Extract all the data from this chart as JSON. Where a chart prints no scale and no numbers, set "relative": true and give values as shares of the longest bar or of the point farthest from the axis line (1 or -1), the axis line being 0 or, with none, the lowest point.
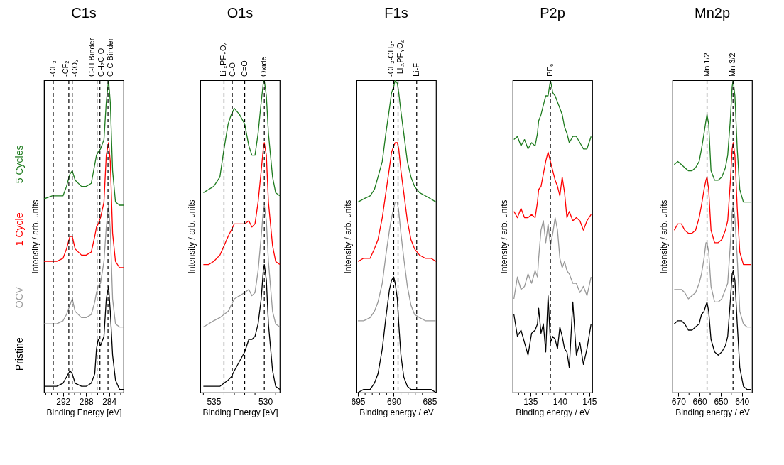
{
  "chart_data": [
    {
      "type": "line",
      "relative": true,
      "tick_labels": "x",
      "title": "C1s",
      "xlabel": "Binding Energy [eV]",
      "ylabel": "Intensity / arb. units",
      "xlim": [
        295.3,
        281.5
      ],
      "xticks": [
        {
          "value": 282,
          "label": null
        },
        {
          "value": 283,
          "label": null
        },
        284,
        {
          "value": 285,
          "label": null
        },
        {
          "value": 286,
          "label": null
        },
        {
          "value": 287,
          "label": null
        },
        288,
        {
          "value": 289,
          "label": null
        },
        {
          "value": 290,
          "label": null
        },
        {
          "value": 291,
          "label": null
        },
        292,
        {
          "value": 293,
          "label": null
        },
        {
          "value": 294,
          "label": null
        },
        {
          "value": 295,
          "label": null
        }
      ],
      "x": [
        295.3,
        293.9,
        293.1,
        292.0,
        291.4,
        290.8,
        290.4,
        289.9,
        288.8,
        288.0,
        287.1,
        286.5,
        286.2,
        285.9,
        285.5,
        284.9,
        284.5,
        284.1,
        283.8,
        283.4,
        282.9,
        282.2,
        281.5
      ],
      "series": [
        {
          "name": "Pristine",
          "color": "#000000",
          "values": [
            0.02,
            0.02,
            0.02,
            0.03,
            0.05,
            0.07,
            0.06,
            0.03,
            0.02,
            0.02,
            0.03,
            0.06,
            0.14,
            0.17,
            0.15,
            0.18,
            0.3,
            0.34,
            0.26,
            0.12,
            0.04,
            0.01,
            0.01
          ]
        },
        {
          "name": "OCV",
          "color": "#999999",
          "values": [
            0.22,
            0.22,
            0.22,
            0.23,
            0.25,
            0.28,
            0.3,
            0.26,
            0.24,
            0.24,
            0.25,
            0.29,
            0.32,
            0.34,
            0.35,
            0.42,
            0.53,
            0.6,
            0.52,
            0.3,
            0.22,
            0.21,
            0.21
          ]
        },
        {
          "name": "1 Cycle",
          "color": "#ff0000",
          "values": [
            0.42,
            0.42,
            0.42,
            0.43,
            0.46,
            0.5,
            0.5,
            0.46,
            0.44,
            0.44,
            0.45,
            0.5,
            0.53,
            0.54,
            0.56,
            0.61,
            0.76,
            0.8,
            0.74,
            0.51,
            0.42,
            0.4,
            0.4
          ]
        },
        {
          "name": "5 Cycles",
          "color": "#1e7b1e",
          "values": [
            0.62,
            0.63,
            0.63,
            0.63,
            0.66,
            0.7,
            0.71,
            0.68,
            0.66,
            0.66,
            0.67,
            0.73,
            0.76,
            0.77,
            0.78,
            0.81,
            0.93,
            1.0,
            0.93,
            0.71,
            0.61,
            0.6,
            0.6
          ]
        }
      ],
      "ref_lines": [
        {
          "axis": "x",
          "value": 293.7,
          "label": "-CF₃",
          "color": "#000000",
          "line_style": "dashed"
        },
        {
          "axis": "x",
          "value": 291.0,
          "label": "-CF₂",
          "color": "#000000",
          "line_style": "dashed"
        },
        {
          "axis": "x",
          "value": 290.4,
          "label": "-CO₃",
          "color": "#000000",
          "line_style": "dashed"
        },
        {
          "axis": "x",
          "value": 286.1,
          "label": "C-H Binder",
          "color": "#000000",
          "line_style": "dashed"
        },
        {
          "axis": "x",
          "value": 285.6,
          "label": "CH₂C-O",
          "color": "#000000",
          "line_style": "dashed"
        },
        {
          "axis": "x",
          "value": 284.2,
          "label": "C-C Binder",
          "color": "#000000",
          "line_style": "dashed"
        }
      ]
    },
    {
      "type": "line",
      "relative": true,
      "tick_labels": "x",
      "title": "O1s",
      "xlabel": "Binding Energy [eV]",
      "ylabel": "Intensity / arb. units",
      "xlim": [
        536.3,
        528.6
      ],
      "xticks": [
        {
          "value": 529,
          "label": null
        },
        530,
        {
          "value": 531,
          "label": null
        },
        {
          "value": 532,
          "label": null
        },
        {
          "value": 533,
          "label": null
        },
        {
          "value": 534,
          "label": null
        },
        535,
        {
          "value": 536,
          "label": null
        }
      ],
      "x": [
        536.0,
        535.5,
        535.0,
        534.4,
        534.0,
        533.6,
        533.3,
        533.0,
        532.5,
        532.0,
        531.6,
        531.3,
        531.0,
        530.7,
        530.4,
        530.2,
        530.1,
        529.9,
        529.7,
        529.3,
        529.0,
        528.6
      ],
      "series": [
        {
          "color": "#000000",
          "values": [
            0.02,
            0.02,
            0.02,
            0.02,
            0.03,
            0.04,
            0.05,
            0.07,
            0.1,
            0.13,
            0.17,
            0.17,
            0.18,
            0.22,
            0.3,
            0.39,
            0.41,
            0.36,
            0.22,
            0.07,
            0.02,
            0.01
          ]
        },
        {
          "color": "#999999",
          "values": [
            0.21,
            0.22,
            0.23,
            0.24,
            0.25,
            0.26,
            0.28,
            0.3,
            0.31,
            0.32,
            0.33,
            0.31,
            0.32,
            0.39,
            0.5,
            0.58,
            0.6,
            0.55,
            0.42,
            0.26,
            0.22,
            0.21
          ]
        },
        {
          "color": "#ff0000",
          "values": [
            0.41,
            0.41,
            0.42,
            0.44,
            0.47,
            0.5,
            0.52,
            0.54,
            0.54,
            0.54,
            0.55,
            0.53,
            0.54,
            0.61,
            0.71,
            0.78,
            0.8,
            0.76,
            0.61,
            0.47,
            0.42,
            0.41
          ]
        },
        {
          "color": "#1e7b1e",
          "values": [
            0.64,
            0.65,
            0.66,
            0.69,
            0.78,
            0.86,
            0.89,
            0.91,
            0.89,
            0.86,
            0.79,
            0.76,
            0.76,
            0.83,
            0.93,
            0.99,
            1.0,
            0.95,
            0.83,
            0.69,
            0.64,
            0.63
          ]
        }
      ],
      "ref_lines": [
        {
          "axis": "x",
          "value": 534.0,
          "label": "Li$_{X}$PF$_{Y}$O$_{Z}$",
          "color": "#000000",
          "line_style": "dashed"
        },
        {
          "axis": "x",
          "value": 533.2,
          "label": "C-O",
          "color": "#000000",
          "line_style": "dashed"
        },
        {
          "axis": "x",
          "value": 532.0,
          "label": "C=O",
          "color": "#000000",
          "line_style": "dashed"
        },
        {
          "axis": "x",
          "value": 530.1,
          "label": "Oxide",
          "color": "#000000",
          "line_style": "dashed"
        }
      ]
    },
    {
      "type": "line",
      "relative": true,
      "tick_labels": "x",
      "title": "F1s",
      "xlabel": "Binding energy / eV",
      "ylabel": "Intensity / arb. units",
      "xlim": [
        695.2,
        684.1
      ],
      "xticks": [
        685,
        {
          "value": 686,
          "label": null
        },
        {
          "value": 687,
          "label": null
        },
        {
          "value": 688,
          "label": null
        },
        {
          "value": 689,
          "label": null
        },
        690,
        {
          "value": 691,
          "label": null
        },
        {
          "value": 692,
          "label": null
        },
        {
          "value": 693,
          "label": null
        },
        {
          "value": 694,
          "label": null
        },
        695
      ],
      "x": [
        695.0,
        694.2,
        693.3,
        692.7,
        692.2,
        691.6,
        691.1,
        690.6,
        690.3,
        690.0,
        689.8,
        689.5,
        689.3,
        689.0,
        688.6,
        688.1,
        687.6,
        687.1,
        686.4,
        685.6,
        684.8,
        684.1
      ],
      "series": [
        {
          "color": "#000000",
          "values": [
            0.0,
            0.01,
            0.01,
            0.03,
            0.06,
            0.14,
            0.24,
            0.33,
            0.36,
            0.37,
            0.35,
            0.3,
            0.22,
            0.12,
            0.05,
            0.02,
            0.01,
            0.01,
            0.01,
            0.01,
            0.01,
            0.0
          ]
        },
        {
          "color": "#999999",
          "values": [
            0.23,
            0.23,
            0.24,
            0.26,
            0.29,
            0.35,
            0.44,
            0.52,
            0.56,
            0.59,
            0.61,
            0.61,
            0.58,
            0.51,
            0.43,
            0.34,
            0.28,
            0.25,
            0.24,
            0.23,
            0.23,
            0.23
          ]
        },
        {
          "color": "#ff0000",
          "values": [
            0.42,
            0.43,
            0.43,
            0.46,
            0.49,
            0.56,
            0.64,
            0.72,
            0.77,
            0.79,
            0.8,
            0.8,
            0.78,
            0.71,
            0.64,
            0.55,
            0.49,
            0.46,
            0.44,
            0.43,
            0.43,
            0.42
          ]
        },
        {
          "color": "#1e7b1e",
          "values": [
            0.61,
            0.62,
            0.63,
            0.65,
            0.69,
            0.74,
            0.83,
            0.91,
            0.96,
            0.98,
            1.0,
            0.99,
            0.96,
            0.9,
            0.83,
            0.74,
            0.69,
            0.66,
            0.64,
            0.63,
            0.62,
            0.61
          ]
        }
      ],
      "ref_lines": [
        {
          "axis": "x",
          "value": 690.0,
          "label": "-CF₂-CH₂-",
          "color": "#000000",
          "line_style": "dashed"
        },
        {
          "axis": "x",
          "value": 689.4,
          "label": "-Li$_{X}$PF$_{Y}$O$_{Z}$",
          "color": "#000000",
          "line_style": "dashed"
        },
        {
          "axis": "x",
          "value": 686.8,
          "label": "Li-F",
          "color": "#000000",
          "line_style": "dashed"
        }
      ]
    },
    {
      "type": "line",
      "relative": true,
      "tick_labels": "x",
      "title": "P2p",
      "xlabel": "Binding energy / eV",
      "ylabel": "Intensity / arb. units",
      "xlim": [
        132.0,
        145.5
      ],
      "xticks": [
        {
          "value": 133,
          "label": null
        },
        {
          "value": 134,
          "label": null
        },
        135,
        {
          "value": 136,
          "label": null
        },
        {
          "value": 137,
          "label": null
        },
        {
          "value": 138,
          "label": null
        },
        {
          "value": 139,
          "label": null
        },
        140,
        {
          "value": 141,
          "label": null
        },
        {
          "value": 142,
          "label": null
        },
        {
          "value": 143,
          "label": null
        },
        {
          "value": 144,
          "label": null
        },
        145
      ],
      "x": [
        132.2,
        132.8,
        133.4,
        134.0,
        134.6,
        135.2,
        135.8,
        136.2,
        136.4,
        136.8,
        137.2,
        137.6,
        138.0,
        138.4,
        138.8,
        139.2,
        139.6,
        140.0,
        140.4,
        140.8,
        141.2,
        141.6,
        142.2,
        142.8,
        143.4,
        144.0,
        144.6,
        145.3
      ],
      "series": [
        {
          "color": "#000000",
          "values": [
            0.25,
            0.18,
            0.2,
            0.16,
            0.12,
            0.19,
            0.2,
            0.22,
            0.27,
            0.19,
            0.22,
            0.13,
            0.31,
            0.16,
            0.18,
            0.17,
            0.14,
            0.21,
            0.18,
            0.14,
            0.13,
            0.08,
            0.29,
            0.12,
            0.16,
            0.09,
            0.14,
            0.22
          ]
        },
        {
          "color": "#999999",
          "values": [
            0.3,
            0.37,
            0.33,
            0.34,
            0.38,
            0.35,
            0.39,
            0.37,
            0.43,
            0.52,
            0.55,
            0.48,
            0.54,
            0.47,
            0.51,
            0.56,
            0.52,
            0.43,
            0.4,
            0.42,
            0.39,
            0.38,
            0.35,
            0.35,
            0.32,
            0.34,
            0.31,
            0.37
          ]
        },
        {
          "color": "#ff0000",
          "values": [
            0.58,
            0.56,
            0.59,
            0.56,
            0.56,
            0.57,
            0.56,
            0.61,
            0.65,
            0.66,
            0.7,
            0.74,
            0.77,
            0.74,
            0.71,
            0.68,
            0.66,
            0.63,
            0.69,
            0.64,
            0.56,
            0.58,
            0.55,
            0.56,
            0.55,
            0.52,
            0.55,
            0.57
          ]
        },
        {
          "color": "#1e7b1e",
          "values": [
            0.81,
            0.82,
            0.79,
            0.81,
            0.78,
            0.8,
            0.79,
            0.83,
            0.87,
            0.89,
            0.92,
            0.95,
            0.95,
            1.0,
            0.96,
            0.95,
            0.93,
            0.91,
            0.89,
            0.85,
            0.83,
            0.8,
            0.82,
            0.82,
            0.8,
            0.78,
            0.78,
            0.82
          ]
        }
      ],
      "ref_lines": [
        {
          "axis": "x",
          "value": 138.4,
          "label": "PF₆",
          "color": "#000000",
          "line_style": "dashed"
        }
      ]
    },
    {
      "type": "line",
      "relative": true,
      "tick_labels": "x",
      "title": "Mn2p",
      "xlabel": "Binding energy / eV",
      "ylabel": "Intensity / arb. units",
      "xlim": [
        672.8,
        635.2
      ],
      "xticks": [
        640,
        {
          "value": 645,
          "label": null
        },
        650,
        {
          "value": 655,
          "label": null
        },
        660,
        {
          "value": 665,
          "label": null
        },
        670
      ],
      "x": [
        672.0,
        670.3,
        668.6,
        667.0,
        665.3,
        663.6,
        661.9,
        660.2,
        659.1,
        657.9,
        657.0,
        656.5,
        655.7,
        654.6,
        652.9,
        651.2,
        649.5,
        647.8,
        646.7,
        645.5,
        644.6,
        644.1,
        643.3,
        642.2,
        641.0,
        639.3,
        637.6,
        635.6
      ],
      "series": [
        {
          "color": "#000000",
          "values": [
            0.22,
            0.23,
            0.23,
            0.22,
            0.2,
            0.2,
            0.21,
            0.22,
            0.25,
            0.26,
            0.28,
            0.29,
            0.26,
            0.17,
            0.13,
            0.12,
            0.13,
            0.15,
            0.18,
            0.29,
            0.38,
            0.39,
            0.36,
            0.22,
            0.08,
            0.02,
            0.01,
            0.01
          ]
        },
        {
          "color": "#999999",
          "values": [
            0.33,
            0.33,
            0.33,
            0.32,
            0.3,
            0.31,
            0.32,
            0.35,
            0.38,
            0.43,
            0.48,
            0.48,
            0.45,
            0.34,
            0.29,
            0.29,
            0.3,
            0.33,
            0.35,
            0.47,
            0.58,
            0.6,
            0.56,
            0.43,
            0.26,
            0.22,
            0.21,
            0.21
          ]
        },
        {
          "color": "#ff0000",
          "values": [
            0.52,
            0.54,
            0.54,
            0.52,
            0.51,
            0.51,
            0.52,
            0.56,
            0.6,
            0.65,
            0.68,
            0.69,
            0.65,
            0.52,
            0.48,
            0.48,
            0.49,
            0.52,
            0.55,
            0.67,
            0.78,
            0.8,
            0.76,
            0.59,
            0.45,
            0.41,
            0.41,
            0.41
          ]
        },
        {
          "color": "#1e7b1e",
          "values": [
            0.73,
            0.74,
            0.73,
            0.72,
            0.71,
            0.71,
            0.72,
            0.74,
            0.78,
            0.83,
            0.87,
            0.89,
            0.86,
            0.71,
            0.68,
            0.68,
            0.69,
            0.72,
            0.76,
            0.87,
            0.98,
            1.0,
            0.95,
            0.78,
            0.65,
            0.61,
            0.61,
            0.61
          ]
        }
      ],
      "ref_lines": [
        {
          "axis": "x",
          "value": 656.5,
          "label": "Mn 1/2",
          "color": "#000000",
          "line_style": "dashed"
        },
        {
          "axis": "x",
          "value": 644.2,
          "label": "Mn 3/2",
          "color": "#000000",
          "line_style": "dashed"
        }
      ]
    }
  ]
}
